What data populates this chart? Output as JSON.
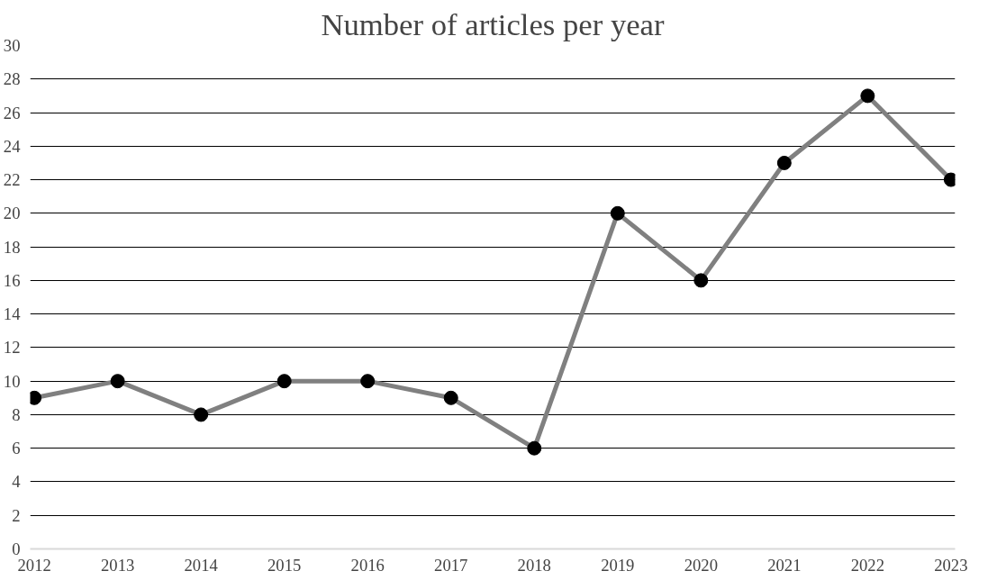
{
  "chart_data": {
    "type": "line",
    "title": "Number of articles per year",
    "categories": [
      "2012",
      "2013",
      "2014",
      "2015",
      "2016",
      "2017",
      "2018",
      "2019",
      "2020",
      "2021",
      "2022",
      "2023"
    ],
    "series": [
      {
        "color": "#808080",
        "values": [
          9,
          10,
          8,
          10,
          10,
          9,
          6,
          20,
          16,
          23,
          27,
          22
        ]
      }
    ],
    "ylim": [
      0,
      30
    ],
    "yticks": [
      0,
      2,
      4,
      6,
      8,
      10,
      12,
      14,
      16,
      18,
      20,
      22,
      24,
      26,
      28,
      30
    ],
    "grid": "y",
    "marker": "circle",
    "line_style": "solid"
  }
}
